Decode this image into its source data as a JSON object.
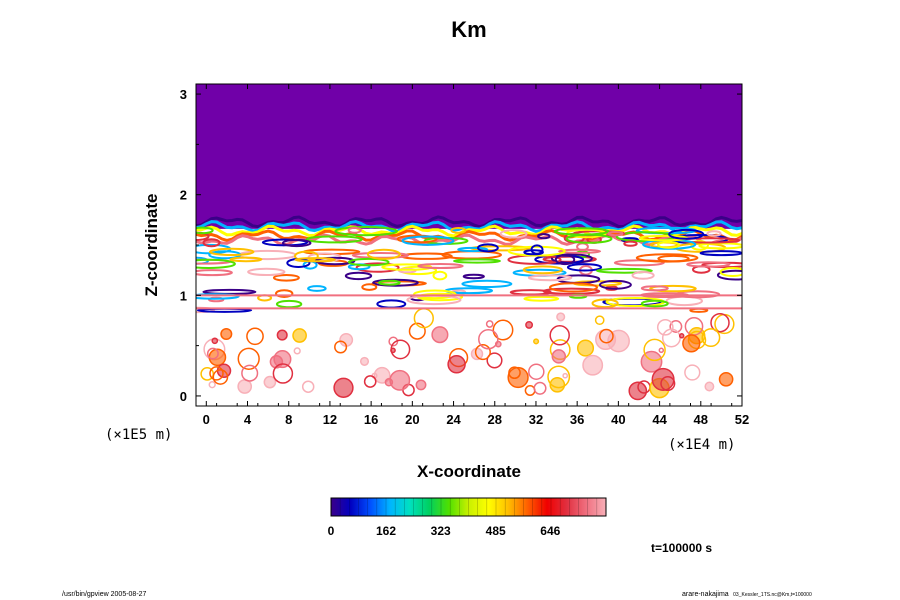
{
  "chart_data": {
    "type": "heatmap",
    "title": "Km",
    "xlabel": "X-coordinate",
    "ylabel": "Z-coordinate",
    "x_scale_label": "(×1E4 m)",
    "y_scale_label": "(×1E5 m)",
    "xlim": [
      -1,
      52
    ],
    "ylim": [
      -0.1,
      3.1
    ],
    "x_ticks": [
      "0",
      "4",
      "8",
      "12",
      "16",
      "20",
      "24",
      "28",
      "32",
      "36",
      "40",
      "44",
      "48",
      "52"
    ],
    "y_ticks": [
      "0",
      "1",
      "2",
      "3"
    ],
    "colorbar": {
      "ticks": [
        "0",
        "162",
        "323",
        "485",
        "646"
      ],
      "range": [
        0,
        810
      ],
      "colors": [
        "#3a0088",
        "#0000c0",
        "#0050ff",
        "#00b4ff",
        "#00e0c0",
        "#00d060",
        "#50e000",
        "#c8f000",
        "#ffff00",
        "#ffc000",
        "#ff6000",
        "#f00000",
        "#e03040",
        "#f07080",
        "#f8b0b8"
      ]
    },
    "fields": {
      "upper_region_color": "#7000a8",
      "upper_region_z_from": 1.7,
      "turbulent_layer_z": [
        0.0,
        1.75
      ]
    }
  },
  "annotation": {
    "time": "t=100000 s"
  },
  "footer": {
    "left": "/usr/bin/gpview 2005-08-27",
    "right_main": "arare-nakajima",
    "right_small": "03_Kessler_1TS.nc@Km,t=100000"
  }
}
